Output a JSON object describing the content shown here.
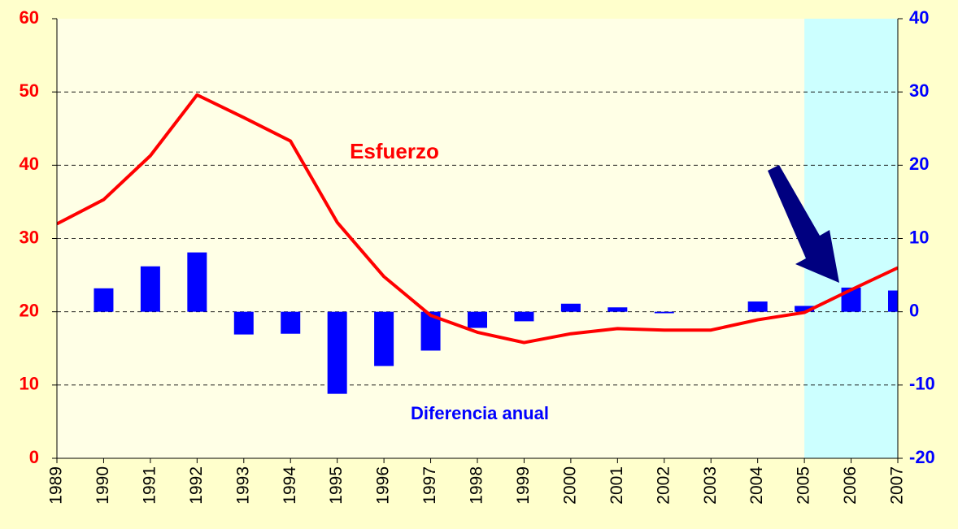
{
  "chart_data": {
    "type": "bar-line",
    "categories": [
      "1989",
      "1990",
      "1991",
      "1992",
      "1993",
      "1994",
      "1995",
      "1996",
      "1997",
      "1998",
      "1999",
      "2000",
      "2001",
      "2002",
      "2003",
      "2004",
      "2005",
      "2006",
      "2007"
    ],
    "series": [
      {
        "name": "Esfuerzo",
        "type": "line",
        "color": "#ff0000",
        "axis": "y",
        "values": [
          32,
          35.3,
          41.3,
          49.6,
          46.5,
          43.3,
          32.2,
          24.8,
          19.5,
          17.2,
          15.8,
          17.0,
          17.7,
          17.5,
          17.5,
          18.9,
          19.9,
          23.0,
          26.0
        ]
      },
      {
        "name": "Diferencia anual",
        "type": "bar",
        "color": "#0000ff",
        "axis": "y2",
        "values": [
          null,
          3.2,
          6.2,
          8.1,
          -3.1,
          -3.0,
          -11.2,
          -7.4,
          -5.3,
          -2.2,
          -1.3,
          1.1,
          0.6,
          -0.2,
          0,
          1.4,
          0.8,
          3.3,
          2.9
        ]
      }
    ],
    "ylim": [
      0,
      60
    ],
    "yticks": [
      0,
      10,
      20,
      30,
      40,
      50,
      60
    ],
    "y2lim": [
      -20,
      40
    ],
    "y2ticks": [
      -20,
      -10,
      0,
      10,
      20,
      30,
      40
    ],
    "grid": true,
    "highlight_range": [
      "2005",
      "2007"
    ]
  }
}
